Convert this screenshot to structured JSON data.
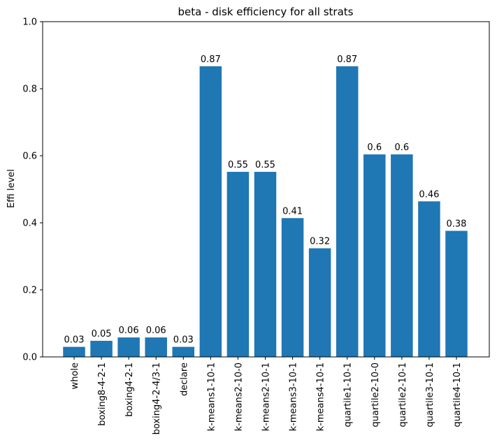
{
  "chart_data": {
    "type": "bar",
    "title": "beta - disk efficiency for all strats",
    "xlabel": "",
    "ylabel": "Effi level",
    "ylim": [
      0,
      1.0
    ],
    "yticks": [
      "0.0",
      "0.2",
      "0.4",
      "0.6",
      "0.8",
      "1.0"
    ],
    "ytick_values": [
      0,
      0.2,
      0.4,
      0.6,
      0.8,
      1.0
    ],
    "grid": false,
    "bar_color": "#1f77b4",
    "categories": [
      "whole",
      "boxing8-4-2-1",
      "boxing4-2-1",
      "boxing4-2-4/3-1",
      "declare",
      "k-means1-10-1",
      "k-means2-10-0",
      "k-means2-10-1",
      "k-means3-10-1",
      "k-means4-10-1",
      "quartile1-10-1",
      "quartile2-10-0",
      "quartile2-10-1",
      "quartile3-10-1",
      "quartile4-10-1"
    ],
    "values": [
      0.03,
      0.048,
      0.058,
      0.058,
      0.03,
      0.867,
      0.552,
      0.552,
      0.414,
      0.324,
      0.867,
      0.604,
      0.604,
      0.464,
      0.376
    ],
    "value_labels": [
      "0.03",
      "0.05",
      "0.06",
      "0.06",
      "0.03",
      "0.87",
      "0.55",
      "0.55",
      "0.41",
      "0.32",
      "0.87",
      "0.6",
      "0.6",
      "0.46",
      "0.38"
    ]
  }
}
